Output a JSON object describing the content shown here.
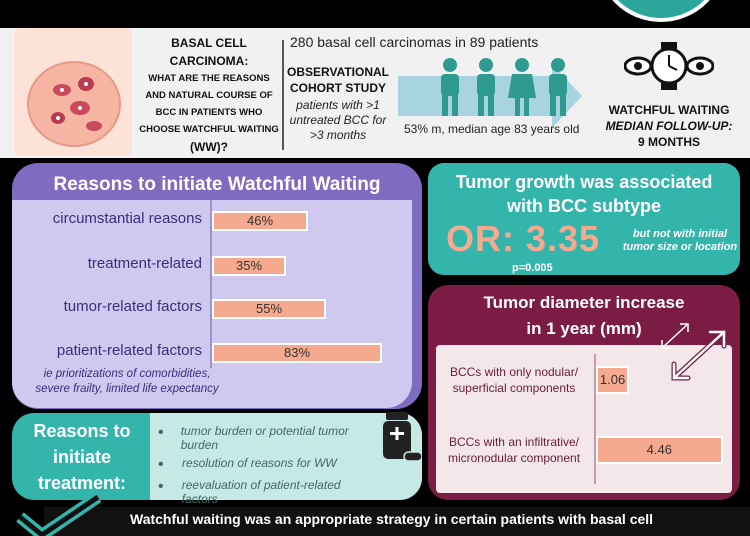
{
  "header": {
    "title_lines": [
      "BASAL CELL",
      "CARCINOMA:"
    ],
    "question_lines": [
      "WHAT ARE THE REASONS",
      "AND NATURAL COURSE OF",
      "BCC IN PATIENTS WHO",
      "CHOOSE WATCHFUL WAITING",
      "(WW)?"
    ],
    "study_lines": [
      "OBSERVATIONAL",
      "COHORT STUDY"
    ],
    "criteria_lines": [
      "patients with >1",
      "untreated BCC for",
      ">3 months"
    ],
    "cohort": "280 basal cell carcinomas in 89 patients",
    "demographics": "53% m, median age 83 years old",
    "ww_title": "WATCHFUL WAITING",
    "followup_lines": [
      "MEDIAN FOLLOW-UP:",
      "9 MONTHS"
    ]
  },
  "reasons_ww": {
    "title": "Reasons to initiate Watchful Waiting",
    "items": [
      {
        "label": "circumstantial reasons",
        "value": 46,
        "value_label": "46%"
      },
      {
        "label": "treatment-related",
        "value": 35,
        "value_label": "35%"
      },
      {
        "label": "tumor-related factors",
        "value": 55,
        "value_label": "55%"
      },
      {
        "label": "patient-related factors",
        "value": 83,
        "value_label": "83%"
      }
    ],
    "note_lines": [
      "ie prioritizations of comorbidities,",
      "severe frailty, limited life expectancy"
    ]
  },
  "reasons_treatment": {
    "title_lines": [
      "Reasons to",
      "initiate",
      "treatment:"
    ],
    "bullets": [
      "tumor burden or potential tumor burden",
      "resolution of reasons for WW",
      "reevaluation of patient-related factors"
    ]
  },
  "growth": {
    "title_lines": [
      "Tumor growth was associated",
      "with BCC subtype"
    ],
    "or_text": "OR: 3.35",
    "note_lines": [
      "but not with initial",
      "tumor size or location"
    ],
    "p_value": "p=0.005"
  },
  "diameter": {
    "title_lines": [
      "Tumor diameter increase",
      "in 1 year (mm)"
    ],
    "items": [
      {
        "label_lines": [
          "BCCs with only nodular/",
          "superficial components"
        ],
        "value": 1.06,
        "value_label": "1.06"
      },
      {
        "label_lines": [
          "BCCs with  an infiltrative/",
          "micronodular component"
        ],
        "value": 4.46,
        "value_label": "4.46"
      }
    ]
  },
  "conclusion": "Watchful waiting was an appropriate strategy in certain patients with basal cell",
  "colors": {
    "purple": "#7f6cc0",
    "teal": "#34b5ac",
    "maroon": "#7b1c44",
    "bar": "#f5a98f",
    "or_orange": "#f5a98f"
  }
}
